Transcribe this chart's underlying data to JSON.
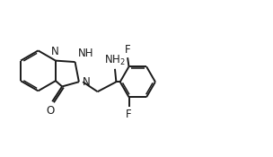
{
  "bg_color": "#ffffff",
  "line_color": "#1a1a1a",
  "text_color": "#1a1a1a",
  "line_width": 1.4,
  "font_size": 8.5,
  "fig_width": 3.04,
  "fig_height": 1.75,
  "dpi": 100,
  "xlim": [
    0,
    10.5
  ],
  "ylim": [
    0,
    6.0
  ]
}
